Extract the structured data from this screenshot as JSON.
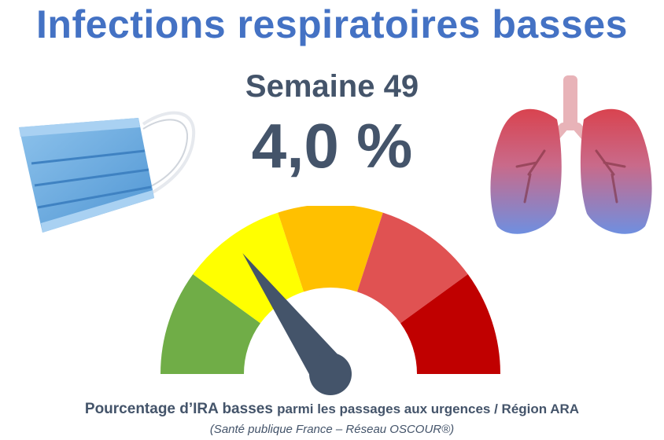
{
  "header": {
    "title": "Infections respiratoires basses",
    "week_label": "Semaine 49",
    "value_label": "4,0 %"
  },
  "footer": {
    "caption_main": "Pourcentage d’IRA basses",
    "caption_rest": "parmi les passages aux urgences / Région ARA",
    "source": "(Santé publique France – Réseau OSCOUR®)"
  },
  "gauge": {
    "level": 2,
    "level_count": 5,
    "needle_fraction": 0.3,
    "segment_colors": [
      "#70ad47",
      "#ffff00",
      "#ffc000",
      "#e05252",
      "#c00000"
    ],
    "needle_color": "#44546a"
  },
  "icons": {
    "left": "face-mask-icon",
    "right": "lungs-icon"
  },
  "colors": {
    "title": "#4472c4",
    "text": "#44546a"
  }
}
